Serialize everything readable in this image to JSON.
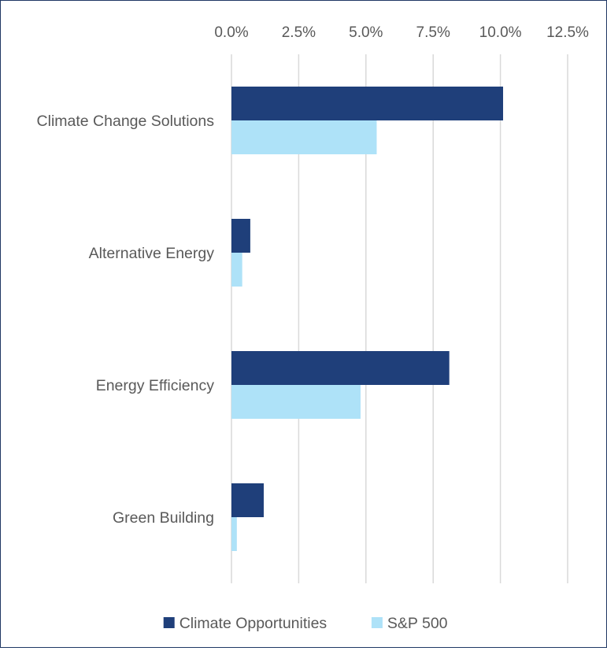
{
  "chart_data": {
    "type": "bar",
    "orientation": "horizontal",
    "categories": [
      "Climate Change Solutions",
      "Alternative Energy",
      "Energy Efficiency",
      "Green Building"
    ],
    "series": [
      {
        "name": "Climate Opportunities",
        "color": "#1f3f7a",
        "values": [
          10.1,
          0.7,
          8.1,
          1.2
        ]
      },
      {
        "name": "S&P 500",
        "color": "#aee2f8",
        "values": [
          5.4,
          0.4,
          4.8,
          0.2
        ]
      }
    ],
    "xlim": [
      0,
      12.5
    ],
    "x_ticks": [
      "0.0%",
      "2.5%",
      "5.0%",
      "7.5%",
      "10.0%",
      "12.5%"
    ],
    "x_tick_values": [
      0,
      2.5,
      5,
      7.5,
      10,
      12.5
    ],
    "x_axis_position": "top",
    "grid": true,
    "grid_color": "#d9d9d9",
    "legend_position": "bottom",
    "border_color": "#1f3864"
  }
}
